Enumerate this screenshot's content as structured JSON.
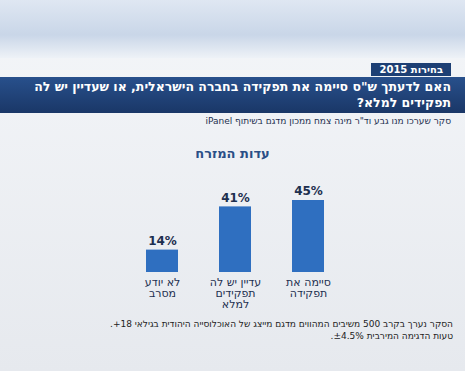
{
  "header": {
    "tag": "בחירות 2015",
    "question": "האם לדעתך ש\"ס סיימה את תפקידה בחברה הישראלית, או שעדיין יש לה תפקידים למלא?",
    "credit": "סקר שערכו מנו גבע וד\"ר מינה צמח ממכון מדגם בשיתוף iPanel"
  },
  "chart_data": {
    "type": "bar",
    "title": "עדות המזרח",
    "categories": [
      "לא יודע מסרב",
      "עדיין יש לה תפקידים למלא",
      "סיימה את תפקידה"
    ],
    "values": [
      14,
      41,
      45
    ],
    "value_labels": [
      "14%",
      "41%",
      "45%"
    ],
    "color": "#2f6fc0",
    "ylim": [
      0,
      50
    ],
    "data_labels": true,
    "tick_labels": "x"
  },
  "footnote": [
    "הסקר נערך בקרב 500 משיבים המהווים מדגם מייצג של האוכלוסייה היהודית בגילאי 18+.",
    "טעות הדגימה המירבית ±4.5%."
  ]
}
